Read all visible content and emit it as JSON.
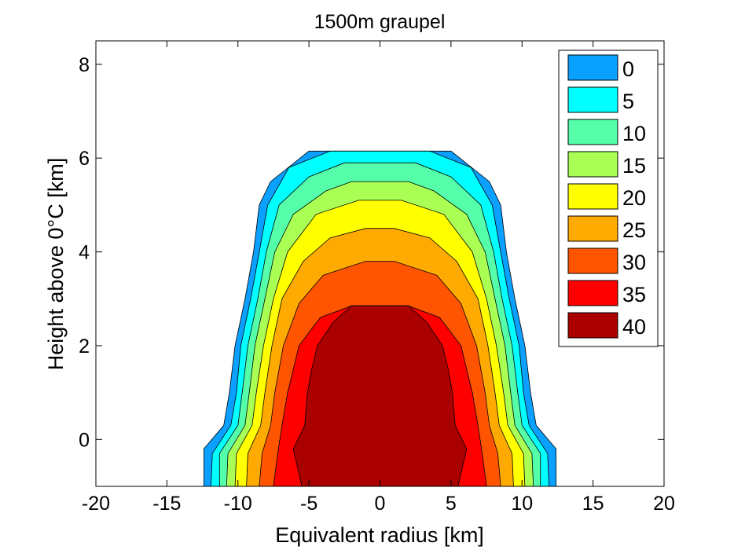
{
  "chart_data": {
    "type": "contour",
    "title": "1500m graupel",
    "xlabel": "Equivalent radius [km]",
    "ylabel": "Height above 0°C [km]",
    "xlim": [
      -20,
      20
    ],
    "ylim": [
      -1,
      8.5
    ],
    "xticks": [
      "-20",
      "-15",
      "-10",
      "-5",
      "0",
      "5",
      "10",
      "15",
      "20"
    ],
    "yticks": [
      "0",
      "2",
      "4",
      "6",
      "8"
    ],
    "legend_position": "top-right",
    "levels": [
      {
        "label": "0",
        "color": "#0aa0ff"
      },
      {
        "label": "5",
        "color": "#00ffff"
      },
      {
        "label": "10",
        "color": "#55ffaa"
      },
      {
        "label": "15",
        "color": "#aaff55"
      },
      {
        "label": "20",
        "color": "#ffff00"
      },
      {
        "label": "25",
        "color": "#ffaa00"
      },
      {
        "label": "30",
        "color": "#ff5500"
      },
      {
        "label": "35",
        "color": "#ff0000"
      },
      {
        "label": "40",
        "color": "#aa0000"
      }
    ],
    "contours": [
      {
        "level": "0",
        "top": 6.15,
        "pts": [
          [
            -1,
            12.4
          ],
          [
            -0.2,
            12.4
          ],
          [
            0.3,
            11.0
          ],
          [
            1.0,
            10.6
          ],
          [
            2.0,
            10.2
          ],
          [
            3.0,
            9.5
          ],
          [
            4.0,
            8.9
          ],
          [
            5.0,
            8.5
          ],
          [
            5.5,
            7.7
          ],
          [
            6.15,
            5.0
          ]
        ]
      },
      {
        "level": "5",
        "top": 6.15,
        "pts": [
          [
            -1,
            11.9
          ],
          [
            -0.3,
            11.8
          ],
          [
            0.3,
            10.5
          ],
          [
            1.0,
            10.1
          ],
          [
            2.0,
            9.8
          ],
          [
            3.0,
            9.1
          ],
          [
            4.0,
            8.5
          ],
          [
            5.0,
            7.9
          ],
          [
            5.8,
            6.4
          ],
          [
            6.15,
            3.5
          ]
        ]
      },
      {
        "level": "10",
        "top": 5.9,
        "pts": [
          [
            -1,
            11.3
          ],
          [
            -0.3,
            11.3
          ],
          [
            0.3,
            10.0
          ],
          [
            1.0,
            9.7
          ],
          [
            2.0,
            9.3
          ],
          [
            3.0,
            8.6
          ],
          [
            4.0,
            8.0
          ],
          [
            5.0,
            7.1
          ],
          [
            5.6,
            5.0
          ],
          [
            5.9,
            2.5
          ]
        ]
      },
      {
        "level": "15",
        "top": 5.5,
        "pts": [
          [
            -1,
            10.8
          ],
          [
            -0.3,
            10.7
          ],
          [
            0.3,
            9.5
          ],
          [
            1.0,
            9.2
          ],
          [
            2.0,
            8.8
          ],
          [
            3.0,
            8.1
          ],
          [
            4.0,
            7.4
          ],
          [
            4.8,
            6.1
          ],
          [
            5.3,
            3.8
          ],
          [
            5.5,
            2.0
          ]
        ]
      },
      {
        "level": "20",
        "top": 5.1,
        "pts": [
          [
            -1,
            10.2
          ],
          [
            -0.3,
            10.1
          ],
          [
            0.3,
            9.0
          ],
          [
            1.0,
            8.7
          ],
          [
            2.0,
            8.2
          ],
          [
            3.0,
            7.5
          ],
          [
            4.0,
            6.5
          ],
          [
            4.8,
            4.5
          ],
          [
            5.1,
            1.5
          ]
        ]
      },
      {
        "level": "25",
        "top": 4.5,
        "pts": [
          [
            -1,
            9.4
          ],
          [
            -0.3,
            9.3
          ],
          [
            0.3,
            8.4
          ],
          [
            1.0,
            8.1
          ],
          [
            2.0,
            7.6
          ],
          [
            3.0,
            6.9
          ],
          [
            3.8,
            5.4
          ],
          [
            4.3,
            3.5
          ],
          [
            4.5,
            1.0
          ]
        ]
      },
      {
        "level": "30",
        "top": 3.8,
        "pts": [
          [
            -1,
            8.5
          ],
          [
            -0.3,
            8.3
          ],
          [
            0.3,
            7.7
          ],
          [
            1.0,
            7.4
          ],
          [
            2.0,
            6.8
          ],
          [
            2.9,
            5.7
          ],
          [
            3.5,
            4.0
          ],
          [
            3.8,
            1.0
          ]
        ]
      },
      {
        "level": "35",
        "top": 2.85,
        "pts": [
          [
            -1,
            7.5
          ],
          [
            -0.3,
            7.2
          ],
          [
            0.3,
            6.9
          ],
          [
            1.0,
            6.5
          ],
          [
            2.0,
            5.7
          ],
          [
            2.6,
            4.2
          ],
          [
            2.85,
            2.0
          ]
        ]
      },
      {
        "level": "40",
        "top": 2.85,
        "pts": [
          [
            -1,
            5.5
          ],
          [
            -0.2,
            6.1
          ],
          [
            0.3,
            5.3
          ],
          [
            1.0,
            5.1
          ],
          [
            1.5,
            4.8
          ],
          [
            2.0,
            4.4
          ],
          [
            2.5,
            3.3
          ],
          [
            2.85,
            2.0
          ]
        ]
      }
    ]
  }
}
